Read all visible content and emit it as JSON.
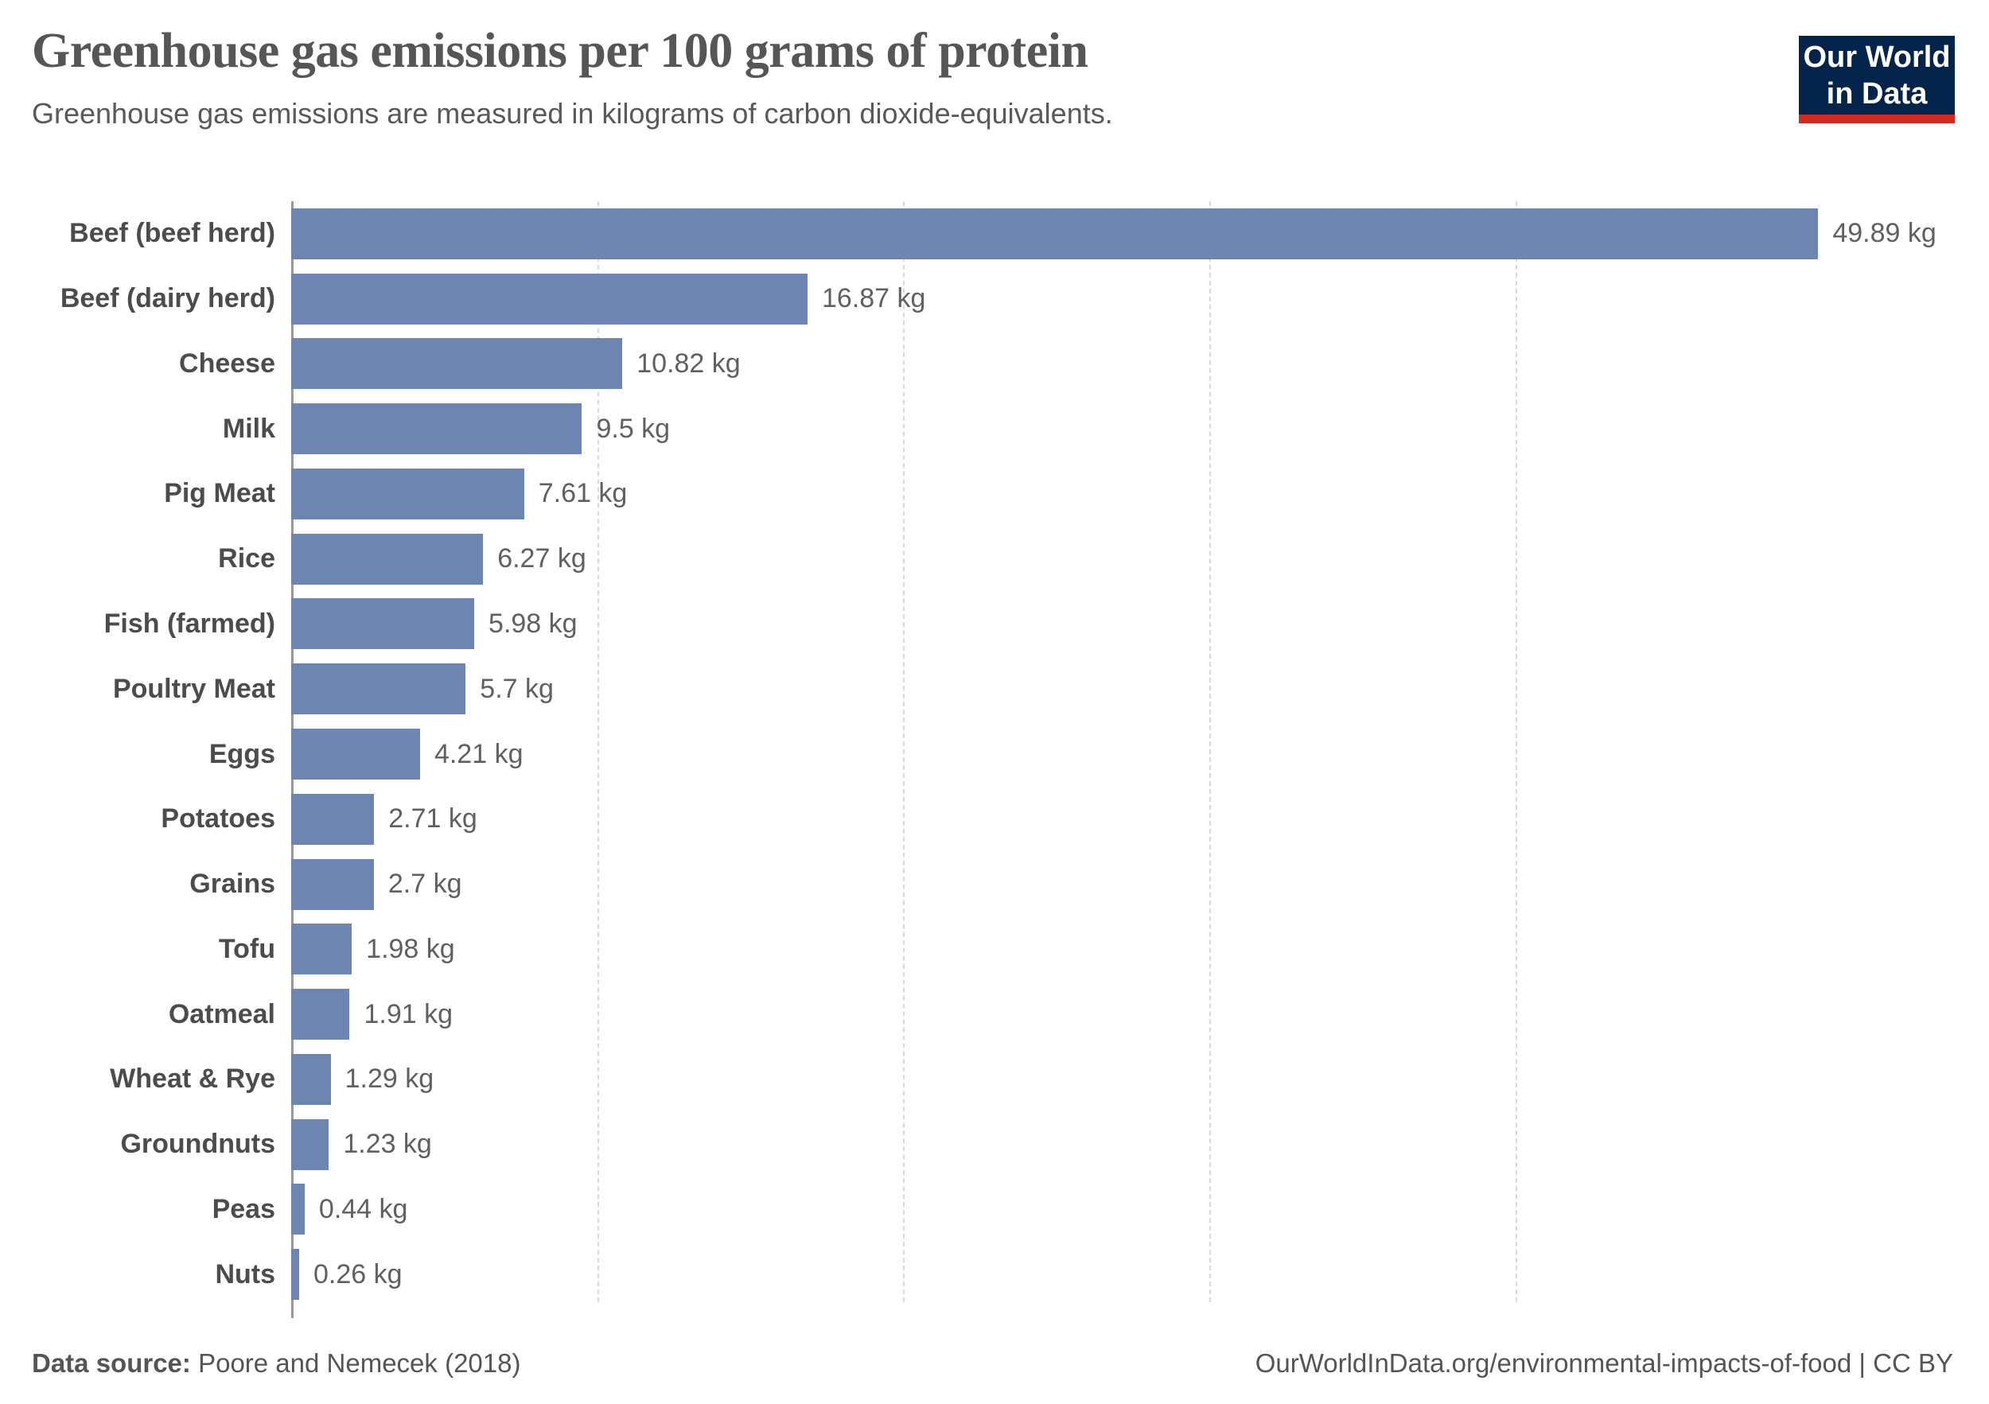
{
  "header": {
    "title": "Greenhouse gas emissions per 100 grams of protein",
    "subtitle": "Greenhouse gas emissions are measured in kilograms of carbon dioxide-equivalents."
  },
  "logo": {
    "line1": "Our World",
    "line2": "in Data",
    "background_color": "#02234a",
    "accent_color": "#d1281f"
  },
  "chart_data": {
    "type": "bar",
    "orientation": "horizontal",
    "title": "Greenhouse gas emissions per 100 grams of protein",
    "xlabel": "",
    "ylabel": "",
    "unit": "kg",
    "xlim": [
      0,
      54.3
    ],
    "gridlines_x": [
      10,
      20,
      30,
      40
    ],
    "grid_style": "dashed",
    "bar_color": "#6d86b1",
    "categories": [
      "Beef (beef herd)",
      "Beef (dairy herd)",
      "Cheese",
      "Milk",
      "Pig Meat",
      "Rice",
      "Fish (farmed)",
      "Poultry Meat",
      "Eggs",
      "Potatoes",
      "Grains",
      "Tofu",
      "Oatmeal",
      "Wheat & Rye",
      "Groundnuts",
      "Peas",
      "Nuts"
    ],
    "values": [
      49.89,
      16.87,
      10.82,
      9.5,
      7.61,
      6.27,
      5.98,
      5.7,
      4.21,
      2.71,
      2.7,
      1.98,
      1.91,
      1.29,
      1.23,
      0.44,
      0.26
    ],
    "value_labels": [
      "49.89 kg",
      "16.87 kg",
      "10.82 kg",
      "9.5 kg",
      "7.61 kg",
      "6.27 kg",
      "5.98 kg",
      "5.7 kg",
      "4.21 kg",
      "2.71 kg",
      "2.7 kg",
      "1.98 kg",
      "1.91 kg",
      "1.29 kg",
      "1.23 kg",
      "0.44 kg",
      "0.26 kg"
    ]
  },
  "footer": {
    "source_label": "Data source:",
    "source_value": " Poore and Nemecek (2018)",
    "right_text": "OurWorldInData.org/environmental-impacts-of-food | CC BY"
  }
}
